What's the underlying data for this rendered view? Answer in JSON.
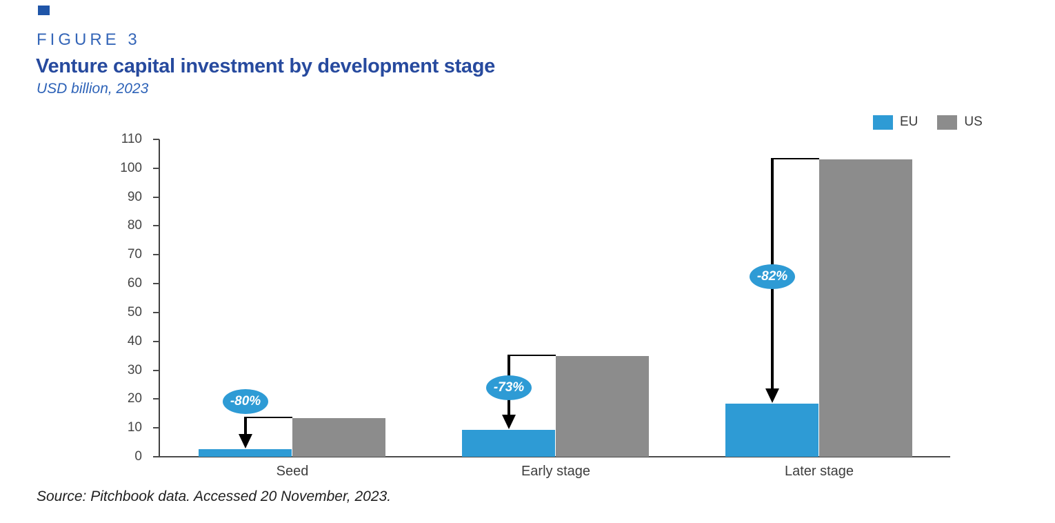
{
  "figure": {
    "eyebrow": "FIGURE 3",
    "title": "Venture capital investment by development stage",
    "subtitle": "USD billion, 2023",
    "source": "Source: Pitchbook data. Accessed 20 November, 2023."
  },
  "colors": {
    "accent_square": "#1f55a8",
    "eyebrow_blue": "#3566b8",
    "title_navy": "#274a9e",
    "subtitle_blue": "#2e63b8",
    "eu_blue": "#2e9bd5",
    "us_gray": "#8c8c8c",
    "annotation_black": "#000000"
  },
  "chart_data": {
    "type": "bar",
    "title": "Venture capital investment by development stage",
    "subtitle_unit": "USD billion, 2023",
    "categories": [
      "Seed",
      "Early stage",
      "Later stage"
    ],
    "series": [
      {
        "name": "EU",
        "color": "#2e9bd5",
        "values": [
          2.6,
          9.4,
          18.4
        ]
      },
      {
        "name": "US",
        "color": "#8c8c8c",
        "values": [
          13.4,
          34.8,
          103
        ]
      }
    ],
    "annotations": [
      {
        "category": "Seed",
        "label": "-80%"
      },
      {
        "category": "Early stage",
        "label": "-73%"
      },
      {
        "category": "Later stage",
        "label": "-82%"
      }
    ],
    "ylim": [
      0,
      110
    ],
    "yticks": [
      0,
      10,
      20,
      30,
      40,
      50,
      60,
      70,
      80,
      90,
      100,
      110
    ],
    "xlabel": "",
    "ylabel": "",
    "grid": false,
    "legend_position": "top-right"
  }
}
